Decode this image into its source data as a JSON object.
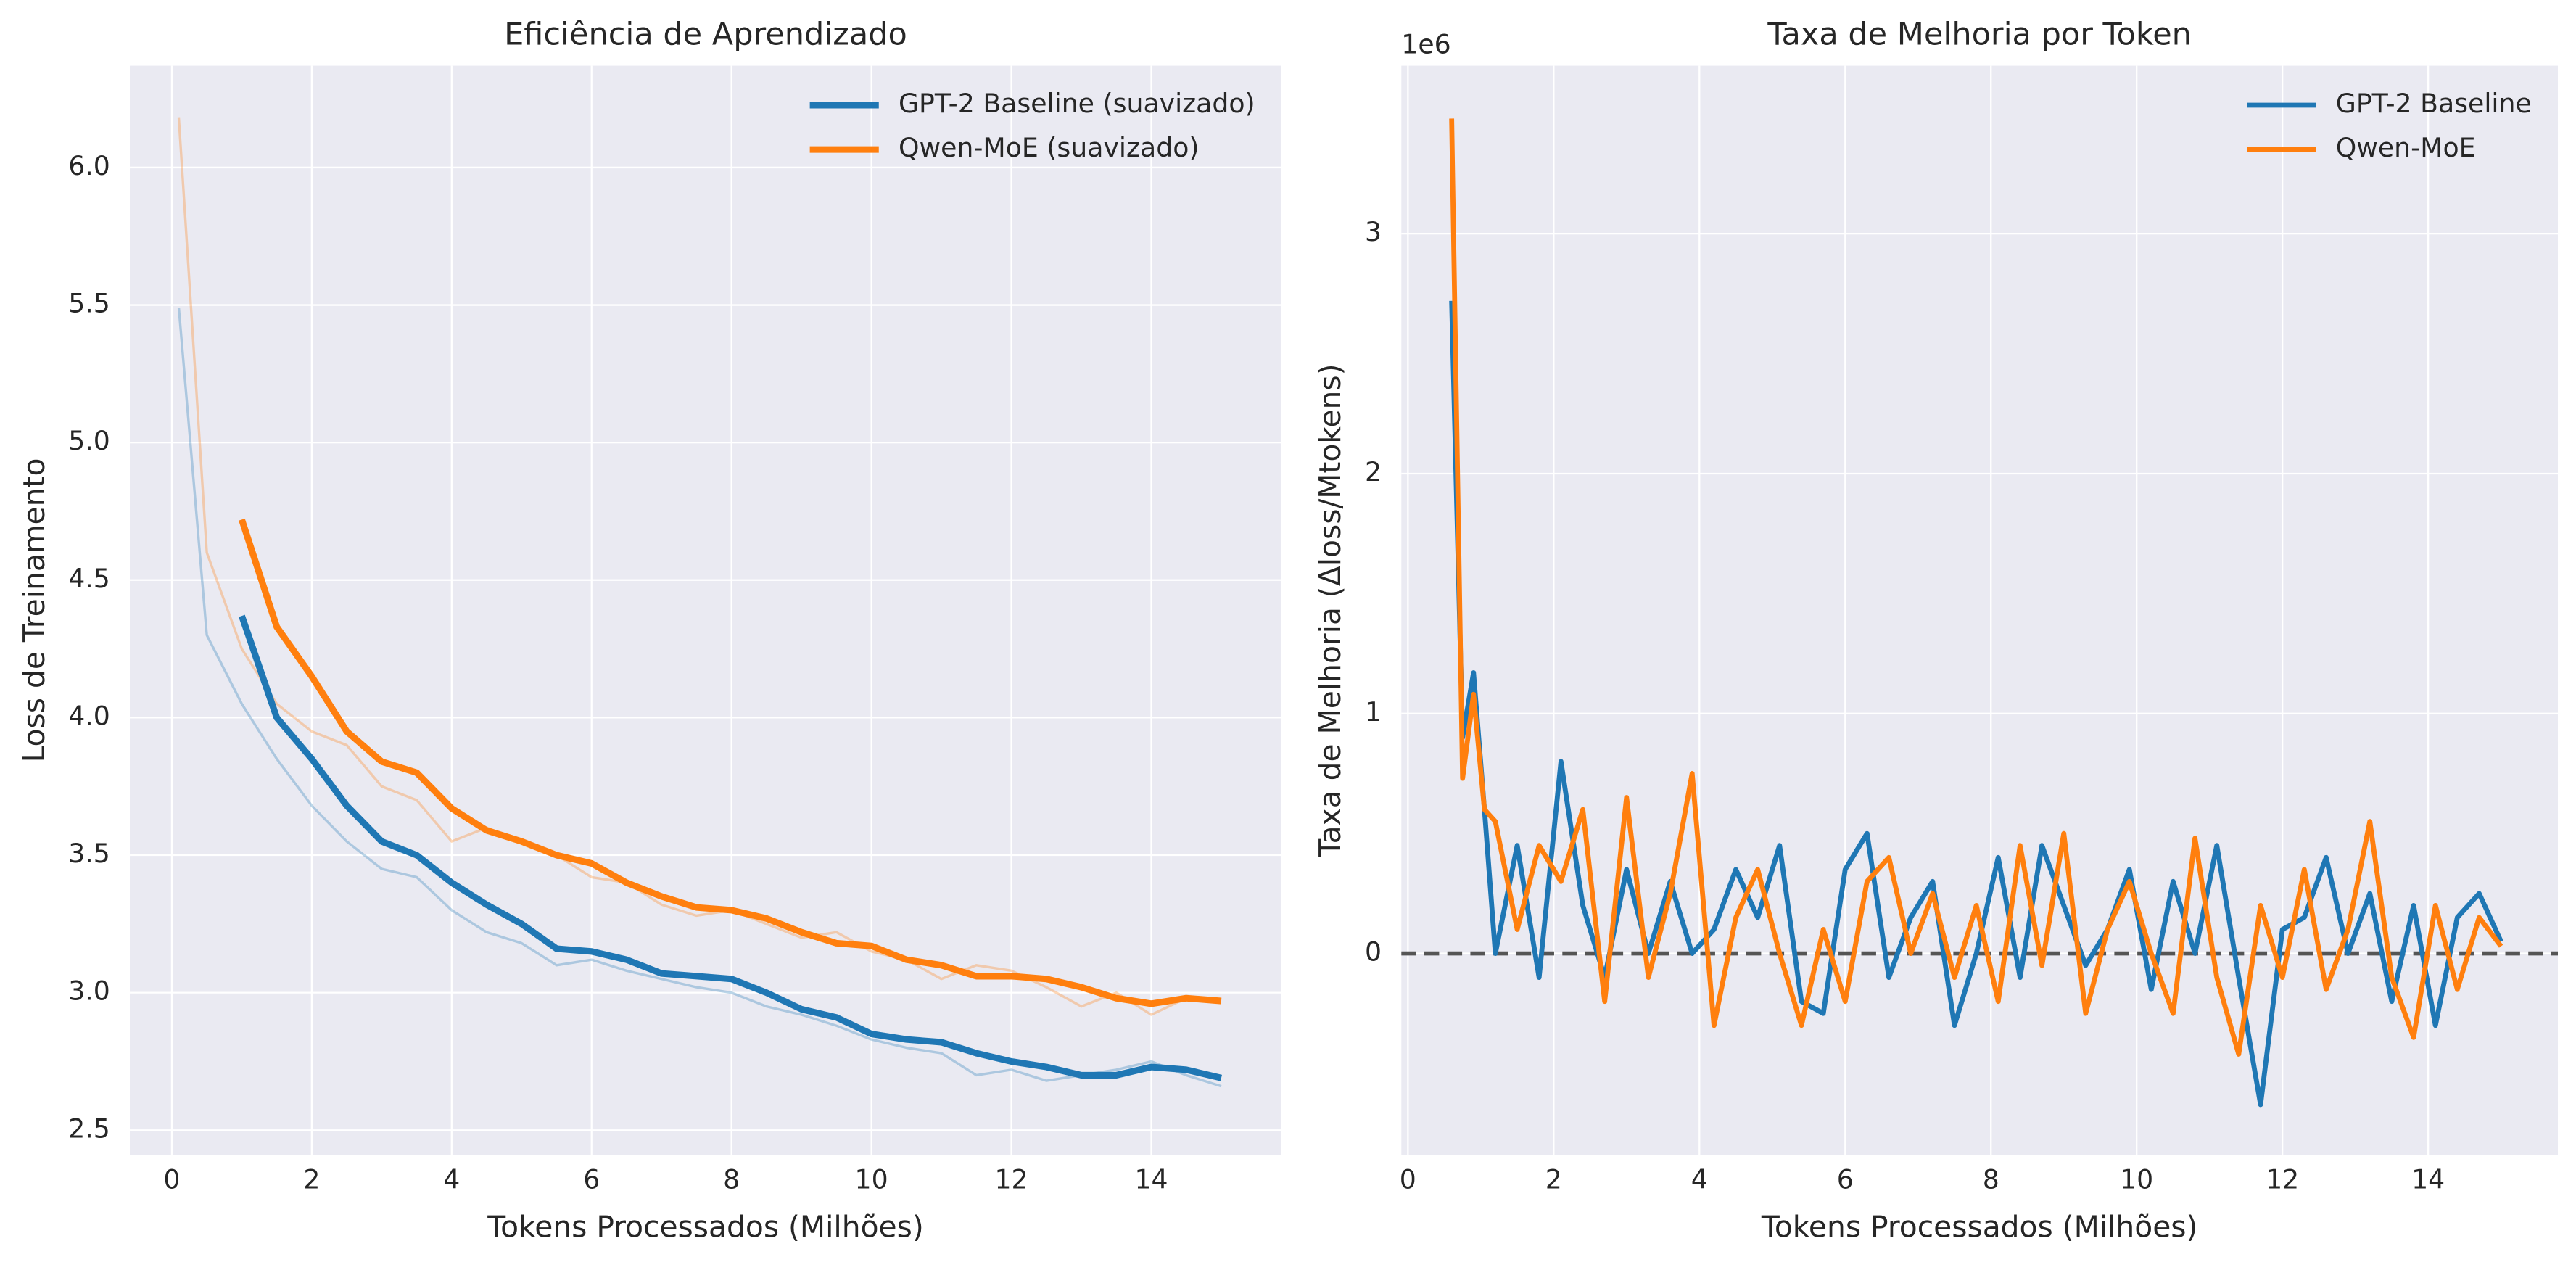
{
  "chart_data": [
    {
      "type": "line",
      "title": "Eficiência de Aprendizado",
      "xlabel": "Tokens Processados (Milhões)",
      "ylabel": "Loss de Treinamento",
      "xlim": [
        -0.6,
        15.86
      ],
      "ylim": [
        2.41,
        6.37
      ],
      "xticks": [
        0,
        2,
        4,
        6,
        8,
        10,
        12,
        14
      ],
      "yticks": [
        {
          "value": 2.5,
          "label": "2.5"
        },
        {
          "value": 3,
          "label": "3.0"
        },
        3.5,
        {
          "value": 4,
          "label": "4.0"
        },
        4.5,
        {
          "value": 5,
          "label": "5.0"
        },
        5.5,
        {
          "value": 6,
          "label": "6.0"
        }
      ],
      "grid": true,
      "legend": "upper right",
      "series": [
        {
          "color": "#1f77b4",
          "opacity": 0.3,
          "linewidth": 1.5,
          "x": [
            0.1,
            0.5,
            1,
            1.5,
            2,
            2.5,
            3,
            3.5,
            4,
            4.5,
            5,
            5.5,
            6,
            6.5,
            7,
            7.5,
            8,
            8.5,
            9,
            9.5,
            10,
            10.5,
            11,
            11.5,
            12,
            12.5,
            13,
            13.5,
            14,
            14.5,
            15
          ],
          "values": [
            5.49,
            4.3,
            4.05,
            3.85,
            3.68,
            3.55,
            3.45,
            3.42,
            3.3,
            3.22,
            3.18,
            3.1,
            3.12,
            3.08,
            3.05,
            3.02,
            3.0,
            2.95,
            2.92,
            2.88,
            2.83,
            2.8,
            2.78,
            2.7,
            2.72,
            2.68,
            2.7,
            2.72,
            2.75,
            2.7,
            2.66
          ]
        },
        {
          "color": "#ff7f0e",
          "opacity": 0.3,
          "linewidth": 1.5,
          "x": [
            0.1,
            0.5,
            1,
            1.5,
            2,
            2.5,
            3,
            3.5,
            4,
            4.5,
            5,
            5.5,
            6,
            6.5,
            7,
            7.5,
            8,
            8.5,
            9,
            9.5,
            10,
            10.5,
            11,
            11.5,
            12,
            12.5,
            13,
            13.5,
            14,
            14.5,
            15
          ],
          "values": [
            6.18,
            4.6,
            4.25,
            4.05,
            3.95,
            3.9,
            3.75,
            3.7,
            3.55,
            3.6,
            3.55,
            3.5,
            3.42,
            3.4,
            3.32,
            3.28,
            3.3,
            3.25,
            3.2,
            3.22,
            3.15,
            3.12,
            3.05,
            3.1,
            3.08,
            3.02,
            2.95,
            3.0,
            2.92,
            2.98,
            2.97
          ]
        },
        {
          "name": "GPT-2 Baseline (suavizado)",
          "color": "#1f77b4",
          "opacity": 1,
          "linewidth": 4,
          "x": [
            1,
            1.5,
            2,
            2.5,
            3,
            3.5,
            4,
            4.5,
            5,
            5.5,
            6,
            6.5,
            7,
            7.5,
            8,
            8.5,
            9,
            9.5,
            10,
            10.5,
            11,
            11.5,
            12,
            12.5,
            13,
            13.5,
            14,
            14.5,
            15
          ],
          "values": [
            4.37,
            4.0,
            3.85,
            3.68,
            3.55,
            3.5,
            3.4,
            3.32,
            3.25,
            3.16,
            3.15,
            3.12,
            3.07,
            3.06,
            3.05,
            3.0,
            2.94,
            2.91,
            2.85,
            2.83,
            2.82,
            2.78,
            2.75,
            2.73,
            2.7,
            2.7,
            2.73,
            2.72,
            2.69
          ]
        },
        {
          "name": "Qwen-MoE (suavizado)",
          "color": "#ff7f0e",
          "opacity": 1,
          "linewidth": 4,
          "x": [
            1,
            1.5,
            2,
            2.5,
            3,
            3.5,
            4,
            4.5,
            5,
            5.5,
            6,
            6.5,
            7,
            7.5,
            8,
            8.5,
            9,
            9.5,
            10,
            10.5,
            11,
            11.5,
            12,
            12.5,
            13,
            13.5,
            14,
            14.5,
            15
          ],
          "values": [
            4.72,
            4.33,
            4.15,
            3.95,
            3.84,
            3.8,
            3.67,
            3.59,
            3.55,
            3.5,
            3.47,
            3.4,
            3.35,
            3.31,
            3.3,
            3.27,
            3.22,
            3.18,
            3.17,
            3.12,
            3.1,
            3.06,
            3.06,
            3.05,
            3.02,
            2.98,
            2.96,
            2.98,
            2.97
          ]
        }
      ]
    },
    {
      "type": "line",
      "title": "Taxa de Melhoria por Token",
      "xlabel": "Tokens Processados (Milhões)",
      "ylabel": "Taxa de Melhoria (Δloss/Mtokens)",
      "offset_text": "1e6",
      "xlim": [
        -0.09,
        15.78
      ],
      "ylim": [
        -840000,
        3700000
      ],
      "xticks": [
        0,
        2,
        4,
        6,
        8,
        10,
        12,
        14
      ],
      "yticks": [
        {
          "value": 0,
          "label": "0"
        },
        {
          "value": 1000000,
          "label": "1"
        },
        {
          "value": 2000000,
          "label": "2"
        },
        {
          "value": 3000000,
          "label": "3"
        }
      ],
      "grid": true,
      "legend": "upper right",
      "hline": 0,
      "hline_color": "#555555",
      "series": [
        {
          "name": "GPT-2 Baseline",
          "color": "#1f77b4",
          "opacity": 1,
          "linewidth": 3,
          "x": [
            0.6,
            0.75,
            0.9,
            1.05,
            1.2,
            1.5,
            1.8,
            2.1,
            2.4,
            2.7,
            3.0,
            3.3,
            3.6,
            3.9,
            4.2,
            4.5,
            4.8,
            5.1,
            5.4,
            5.7,
            6.0,
            6.3,
            6.6,
            6.9,
            7.2,
            7.5,
            7.8,
            8.1,
            8.4,
            8.7,
            9.0,
            9.3,
            9.6,
            9.9,
            10.2,
            10.5,
            10.8,
            11.1,
            11.4,
            11.7,
            12.0,
            12.3,
            12.6,
            12.9,
            13.2,
            13.5,
            13.8,
            14.1,
            14.4,
            14.7,
            15.0
          ],
          "values": [
            2720000,
            900000,
            1170000,
            600000,
            0,
            450000,
            -100000,
            800000,
            200000,
            -100000,
            350000,
            0,
            300000,
            0,
            100000,
            350000,
            150000,
            450000,
            -200000,
            -250000,
            350000,
            500000,
            -100000,
            150000,
            300000,
            -300000,
            0,
            400000,
            -100000,
            450000,
            200000,
            -50000,
            100000,
            350000,
            -150000,
            300000,
            0,
            450000,
            -100000,
            -630000,
            100000,
            150000,
            400000,
            0,
            250000,
            -200000,
            200000,
            -300000,
            150000,
            250000,
            50000
          ]
        },
        {
          "name": "Qwen-MoE",
          "color": "#ff7f0e",
          "opacity": 1,
          "linewidth": 3,
          "x": [
            0.6,
            0.75,
            0.9,
            1.05,
            1.2,
            1.5,
            1.8,
            2.1,
            2.4,
            2.7,
            3.0,
            3.3,
            3.6,
            3.9,
            4.2,
            4.5,
            4.8,
            5.1,
            5.4,
            5.7,
            6.0,
            6.3,
            6.6,
            6.9,
            7.2,
            7.5,
            7.8,
            8.1,
            8.4,
            8.7,
            9.0,
            9.3,
            9.6,
            9.9,
            10.2,
            10.5,
            10.8,
            11.1,
            11.4,
            11.7,
            12.0,
            12.3,
            12.6,
            12.9,
            13.2,
            13.5,
            13.8,
            14.1,
            14.4,
            14.7,
            15.0
          ],
          "values": [
            3480000,
            730000,
            1080000,
            600000,
            550000,
            100000,
            450000,
            300000,
            600000,
            -200000,
            650000,
            -100000,
            250000,
            750000,
            -300000,
            150000,
            350000,
            0,
            -300000,
            100000,
            -200000,
            300000,
            400000,
            0,
            250000,
            -100000,
            200000,
            -200000,
            450000,
            -50000,
            500000,
            -250000,
            100000,
            300000,
            0,
            -250000,
            480000,
            -100000,
            -420000,
            200000,
            -100000,
            350000,
            -150000,
            100000,
            550000,
            -100000,
            -350000,
            200000,
            -150000,
            150000,
            30000
          ]
        }
      ]
    }
  ]
}
